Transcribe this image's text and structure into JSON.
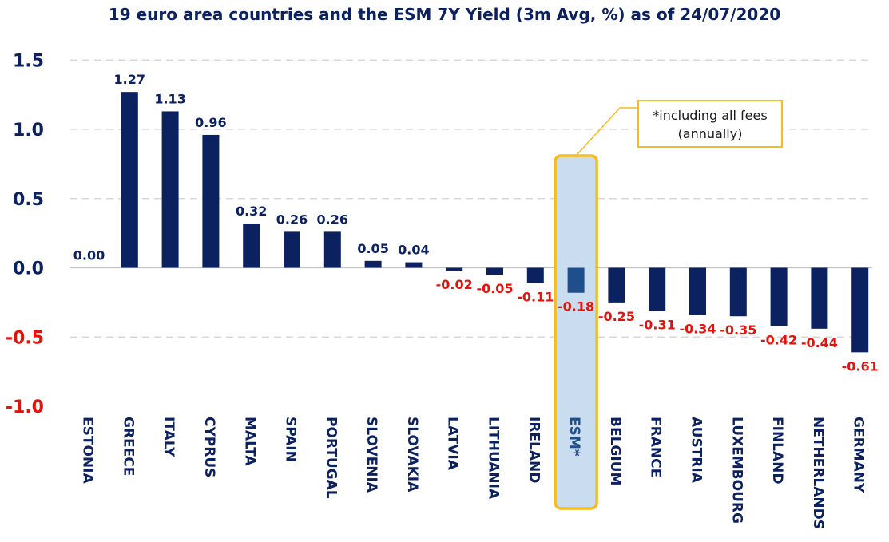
{
  "colors": {
    "title": "#0c2160",
    "bar": "#0c2160",
    "esm_bar": "#1f4e8c",
    "highlight_fill": "#c9dcf0",
    "highlight_border": "#f6bb1d",
    "positive_label": "#0c2160",
    "negative_label": "#e3130c",
    "grid": "#d0d0d0"
  },
  "callout": {
    "line1": "*including all fees",
    "line2": "(annually)"
  },
  "chart_data": {
    "type": "bar",
    "title": "19 euro area countries and the ESM 7Y Yield (3m Avg, %) as of 24/07/2020",
    "xlabel": "",
    "ylabel": "",
    "ylim": [
      -1.0,
      1.5
    ],
    "yticks": [
      1.5,
      1.0,
      0.5,
      0.0,
      -0.5,
      -1.0
    ],
    "ytick_labels": [
      "1.5",
      "1.0",
      "0.5",
      "0.0",
      "-0.5",
      "-1.0"
    ],
    "grid": true,
    "highlight_category": "ESM*",
    "categories": [
      "ESTONIA",
      "GREECE",
      "ITALY",
      "CYPRUS",
      "MALTA",
      "SPAIN",
      "PORTUGAL",
      "SLOVENIA",
      "SLOVAKIA",
      "LATVIA",
      "LITHUANIA",
      "IRELAND",
      "ESM*",
      "BELGIUM",
      "FRANCE",
      "AUSTRIA",
      "LUXEMBOURG",
      "FINLAND",
      "NETHERLANDS",
      "GERMANY"
    ],
    "values": [
      0.0,
      1.27,
      1.13,
      0.96,
      0.32,
      0.26,
      0.26,
      0.05,
      0.04,
      -0.02,
      -0.05,
      -0.11,
      -0.18,
      -0.25,
      -0.31,
      -0.34,
      -0.35,
      -0.42,
      -0.44,
      -0.61
    ],
    "value_labels": [
      "0.00",
      "1.27",
      "1.13",
      "0.96",
      "0.32",
      "0.26",
      "0.26",
      "0.05",
      "0.04",
      "-0.02",
      "-0.05",
      "-0.11",
      "-0.18",
      "-0.25",
      "-0.31",
      "-0.34",
      "-0.35",
      "-0.42",
      "-0.44",
      "-0.61"
    ]
  }
}
